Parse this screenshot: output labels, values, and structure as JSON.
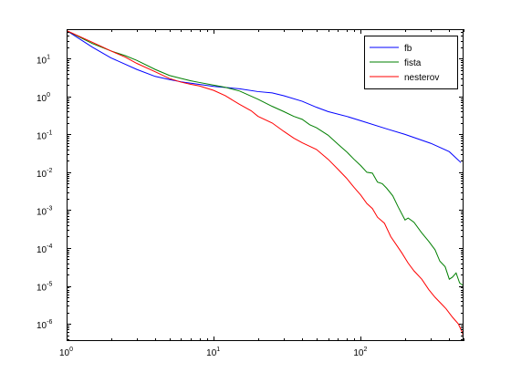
{
  "chart_data": {
    "type": "line",
    "title": "",
    "xlabel": "",
    "ylabel": "",
    "xscale": "log",
    "yscale": "log",
    "xlim": [
      1,
      500
    ],
    "ylim": [
      3.5e-07,
      60
    ],
    "grid": false,
    "legend_position": "top-right",
    "x_ticks": [
      {
        "base": "10",
        "exp": "0",
        "value": 1
      },
      {
        "base": "10",
        "exp": "1",
        "value": 10
      },
      {
        "base": "10",
        "exp": "2",
        "value": 100
      }
    ],
    "y_ticks": [
      {
        "base": "10",
        "exp": "1",
        "value": 10
      },
      {
        "base": "10",
        "exp": "0",
        "value": 1
      },
      {
        "base": "10",
        "exp": "-1",
        "value": 0.1
      },
      {
        "base": "10",
        "exp": "-2",
        "value": 0.01
      },
      {
        "base": "10",
        "exp": "-3",
        "value": 0.001
      },
      {
        "base": "10",
        "exp": "-4",
        "value": 0.0001
      },
      {
        "base": "10",
        "exp": "-5",
        "value": 1e-05
      },
      {
        "base": "10",
        "exp": "-6",
        "value": 1e-06
      }
    ],
    "series": [
      {
        "name": "fb",
        "color": "#0000ff",
        "points": [
          [
            1,
            55
          ],
          [
            1.5,
            20
          ],
          [
            2,
            10.5
          ],
          [
            3,
            5.2
          ],
          [
            4,
            3.4
          ],
          [
            5,
            2.8
          ],
          [
            6,
            2.45
          ],
          [
            7,
            2.25
          ],
          [
            10,
            1.85
          ],
          [
            15,
            1.6
          ],
          [
            20,
            1.35
          ],
          [
            25,
            1.25
          ],
          [
            30,
            1.05
          ],
          [
            40,
            0.75
          ],
          [
            50,
            0.52
          ],
          [
            60,
            0.4
          ],
          [
            80,
            0.3
          ],
          [
            100,
            0.23
          ],
          [
            150,
            0.14
          ],
          [
            200,
            0.1
          ],
          [
            300,
            0.058
          ],
          [
            400,
            0.035
          ],
          [
            480,
            0.018
          ]
        ]
      },
      {
        "name": "fista",
        "color": "#007f00",
        "points": [
          [
            1,
            55
          ],
          [
            1.5,
            25
          ],
          [
            2,
            16
          ],
          [
            2.5,
            12
          ],
          [
            3,
            9
          ],
          [
            4,
            5.2
          ],
          [
            5,
            3.6
          ],
          [
            6,
            3.0
          ],
          [
            7,
            2.6
          ],
          [
            8,
            2.35
          ],
          [
            10,
            2.0
          ],
          [
            12,
            1.75
          ],
          [
            15,
            1.4
          ],
          [
            20,
            0.85
          ],
          [
            25,
            0.55
          ],
          [
            30,
            0.4
          ],
          [
            35,
            0.3
          ],
          [
            40,
            0.25
          ],
          [
            45,
            0.18
          ],
          [
            50,
            0.15
          ],
          [
            60,
            0.095
          ],
          [
            70,
            0.055
          ],
          [
            80,
            0.035
          ],
          [
            90,
            0.022
          ],
          [
            100,
            0.015
          ],
          [
            110,
            0.01
          ],
          [
            120,
            0.0095
          ],
          [
            130,
            0.0055
          ],
          [
            140,
            0.005
          ],
          [
            150,
            0.0038
          ],
          [
            165,
            0.0024
          ],
          [
            180,
            0.0012
          ],
          [
            200,
            0.00055
          ],
          [
            210,
            0.00062
          ],
          [
            230,
            0.00048
          ],
          [
            260,
            0.00025
          ],
          [
            290,
            0.00015
          ],
          [
            320,
            9e-05
          ],
          [
            345,
            4.5e-05
          ],
          [
            375,
            3.2e-05
          ],
          [
            400,
            1.5e-05
          ],
          [
            420,
            1.7e-05
          ],
          [
            445,
            2.2e-05
          ],
          [
            470,
            1.2e-05
          ],
          [
            500,
            1e-05
          ]
        ]
      },
      {
        "name": "nesterov",
        "color": "#ff0000",
        "points": [
          [
            1,
            55
          ],
          [
            1.5,
            27
          ],
          [
            2,
            16
          ],
          [
            2.5,
            11
          ],
          [
            3,
            7.5
          ],
          [
            4,
            4.5
          ],
          [
            5,
            3.0
          ],
          [
            6,
            2.4
          ],
          [
            7,
            2.1
          ],
          [
            8,
            1.9
          ],
          [
            10,
            1.45
          ],
          [
            12,
            1.05
          ],
          [
            15,
            0.62
          ],
          [
            18,
            0.42
          ],
          [
            20,
            0.3
          ],
          [
            25,
            0.2
          ],
          [
            30,
            0.12
          ],
          [
            35,
            0.08
          ],
          [
            40,
            0.06
          ],
          [
            50,
            0.04
          ],
          [
            60,
            0.022
          ],
          [
            70,
            0.012
          ],
          [
            80,
            0.007
          ],
          [
            90,
            0.004
          ],
          [
            100,
            0.0025
          ],
          [
            110,
            0.0015
          ],
          [
            120,
            0.0011
          ],
          [
            130,
            0.00065
          ],
          [
            145,
            0.00045
          ],
          [
            160,
            0.0002
          ],
          [
            175,
            0.00012
          ],
          [
            190,
            7.5e-05
          ],
          [
            210,
            4e-05
          ],
          [
            230,
            2.5e-05
          ],
          [
            260,
            1.5e-05
          ],
          [
            290,
            8e-06
          ],
          [
            320,
            5e-06
          ],
          [
            350,
            3.5e-06
          ],
          [
            380,
            2.5e-06
          ],
          [
            420,
            1.5e-06
          ],
          [
            460,
            1e-06
          ],
          [
            490,
            6e-07
          ],
          [
            500,
            4.2e-07
          ]
        ]
      }
    ]
  }
}
